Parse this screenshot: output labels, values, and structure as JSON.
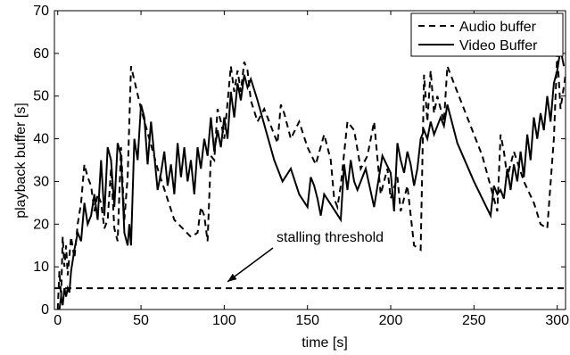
{
  "chart_data": {
    "type": "line",
    "xlabel": "time [s]",
    "ylabel": "playback buffer [s]",
    "xlim": [
      -2,
      305
    ],
    "ylim": [
      0,
      70
    ],
    "xticks": [
      0,
      50,
      100,
      150,
      200,
      250,
      300
    ],
    "yticks": [
      0,
      10,
      20,
      30,
      40,
      50,
      60,
      70
    ],
    "grid": false,
    "legend_position": "top-right",
    "annotation": {
      "text": "stalling threshold",
      "points_to": [
        102,
        6.5
      ]
    },
    "threshold": {
      "y": 5
    },
    "series": [
      {
        "name": "Audio buffer",
        "style": "dashed",
        "x": [
          0,
          1,
          2,
          3,
          4,
          5,
          6,
          8,
          10,
          12,
          14,
          16,
          18,
          20,
          22,
          24,
          26,
          28,
          30,
          32,
          34,
          36,
          38,
          40,
          42,
          44,
          50,
          60,
          70,
          80,
          84,
          86,
          88,
          90,
          92,
          94,
          96,
          98,
          100,
          104,
          106,
          108,
          110,
          112,
          114,
          116,
          120,
          124,
          130,
          132,
          134,
          136,
          140,
          145,
          150,
          155,
          160,
          164,
          166,
          168,
          170,
          174,
          178,
          182,
          186,
          190,
          194,
          198,
          200,
          204,
          206,
          210,
          214,
          218,
          220,
          222,
          224,
          226,
          228,
          232,
          234,
          238,
          245,
          255,
          262,
          264,
          266,
          268,
          270,
          274,
          280,
          286,
          290,
          294,
          298,
          300,
          302,
          305
        ],
        "values": [
          0,
          9,
          3,
          17,
          10,
          15,
          8,
          17,
          12,
          20,
          25,
          34,
          31,
          29,
          23,
          27,
          25,
          19,
          21,
          33,
          19,
          16,
          38,
          21,
          31,
          57,
          47,
          33,
          21,
          17,
          18,
          24,
          22,
          16,
          36,
          35,
          47,
          44,
          40,
          57,
          51,
          56,
          51,
          58,
          56,
          49,
          44,
          47,
          41,
          39,
          48,
          46,
          40,
          44,
          38,
          34,
          41,
          35,
          26,
          24,
          29,
          44,
          42,
          33,
          36,
          44,
          27,
          33,
          26,
          31,
          23,
          29,
          15,
          14,
          55,
          44,
          56,
          46,
          50,
          44,
          57,
          53,
          46,
          36,
          26,
          23,
          41,
          37,
          31,
          37,
          30,
          25,
          20,
          19,
          40,
          60,
          47,
          55
        ]
      },
      {
        "name": "Video Buffer",
        "style": "solid",
        "x": [
          1,
          2,
          3,
          4,
          5,
          6,
          7,
          8,
          10,
          12,
          14,
          16,
          18,
          20,
          22,
          24,
          26,
          28,
          30,
          32,
          34,
          36,
          38,
          40,
          42,
          43,
          44,
          46,
          48,
          50,
          52,
          54,
          56,
          58,
          60,
          62,
          64,
          66,
          68,
          70,
          72,
          74,
          76,
          78,
          80,
          82,
          84,
          86,
          88,
          90,
          92,
          94,
          96,
          98,
          100,
          102,
          104,
          106,
          108,
          110,
          112,
          114,
          116,
          120,
          125,
          130,
          135,
          140,
          145,
          150,
          152,
          154,
          156,
          158,
          160,
          165,
          170,
          172,
          174,
          176,
          178,
          180,
          185,
          190,
          195,
          200,
          202,
          204,
          206,
          208,
          210,
          212,
          214,
          216,
          218,
          220,
          222,
          224,
          226,
          228,
          230,
          232,
          234,
          240,
          250,
          260,
          262,
          264,
          266,
          268,
          270,
          272,
          274,
          276,
          278,
          280,
          282,
          284,
          286,
          288,
          290,
          292,
          294,
          296,
          298,
          300,
          302,
          304
        ],
        "values": [
          0,
          3,
          1,
          5,
          3,
          5,
          4,
          9,
          14,
          18,
          16,
          25,
          20,
          22,
          27,
          21,
          35,
          22,
          38,
          35,
          24,
          39,
          36,
          18,
          15,
          20,
          15,
          40,
          35,
          48,
          45,
          34,
          44,
          36,
          28,
          32,
          37,
          29,
          34,
          27,
          39,
          31,
          38,
          30,
          35,
          27,
          38,
          33,
          40,
          36,
          45,
          37,
          42,
          38,
          45,
          40,
          51,
          45,
          53,
          49,
          55,
          52,
          54,
          49,
          42,
          35,
          30,
          33,
          27,
          24,
          31,
          29,
          26,
          22,
          27,
          24,
          21,
          34,
          28,
          35,
          30,
          28,
          33,
          24,
          36,
          32,
          23,
          39,
          35,
          32,
          37,
          34,
          29,
          33,
          40,
          42,
          40,
          44,
          41,
          43,
          45,
          43,
          48,
          39,
          30,
          22,
          29,
          27,
          28,
          26,
          33,
          28,
          34,
          30,
          37,
          31,
          41,
          35,
          45,
          40,
          46,
          42,
          50,
          44,
          53,
          56,
          61,
          57
        ]
      }
    ]
  }
}
